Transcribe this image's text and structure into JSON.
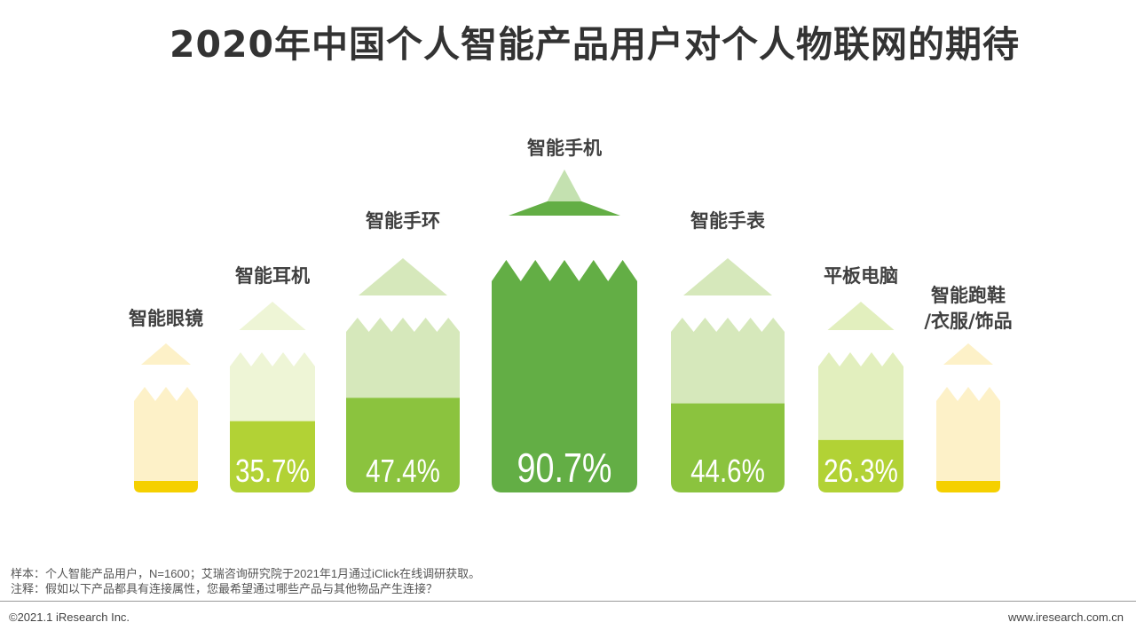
{
  "title": "2020年中国个人智能产品用户对个人物联网的期待",
  "chart_data": {
    "type": "bar",
    "title": "2020年中国个人智能产品用户对个人物联网的期待",
    "unit": "%",
    "categories": [
      "智能眼镜",
      "智能耳机",
      "智能手环",
      "智能手机",
      "智能手表",
      "平板电脑",
      "智能跑鞋/衣服/饰品"
    ],
    "values": [
      null,
      35.7,
      47.4,
      90.7,
      44.6,
      26.3,
      null
    ],
    "value_labels": [
      "",
      "35.7%",
      "47.4%",
      "90.7%",
      "44.6%",
      "26.3%",
      ""
    ],
    "label_lines": [
      [
        "智能眼镜"
      ],
      [
        "智能耳机"
      ],
      [
        "智能手环"
      ],
      [
        "智能手机"
      ],
      [
        "智能手表"
      ],
      [
        "平板电脑"
      ],
      [
        "智能跑鞋",
        "/衣服/饰品"
      ]
    ],
    "colors": {
      "dark_fill": [
        "#f5d000",
        "#b2d235",
        "#8bc33e",
        "#63ae45",
        "#8bc33e",
        "#b2d235",
        "#f5d000"
      ],
      "light_fill": [
        "#fdf1c8",
        "#eef5d6",
        "#d6e8bb",
        "#c4e1b0",
        "#d6e8bb",
        "#e2efbe",
        "#fdf1c8"
      ]
    },
    "legend": "none",
    "grid": false
  },
  "footnotes": {
    "sample": "样本：个人智能产品用户，N=1600；艾瑞咨询研究院于2021年1月通过iClick在线调研获取。",
    "note": "注释：假如以下产品都具有连接属性，您最希望通过哪些产品与其他物品产生连接？"
  },
  "footer": {
    "copyright": "©2021.1 iResearch Inc.",
    "website": "www.iresearch.com.cn"
  }
}
